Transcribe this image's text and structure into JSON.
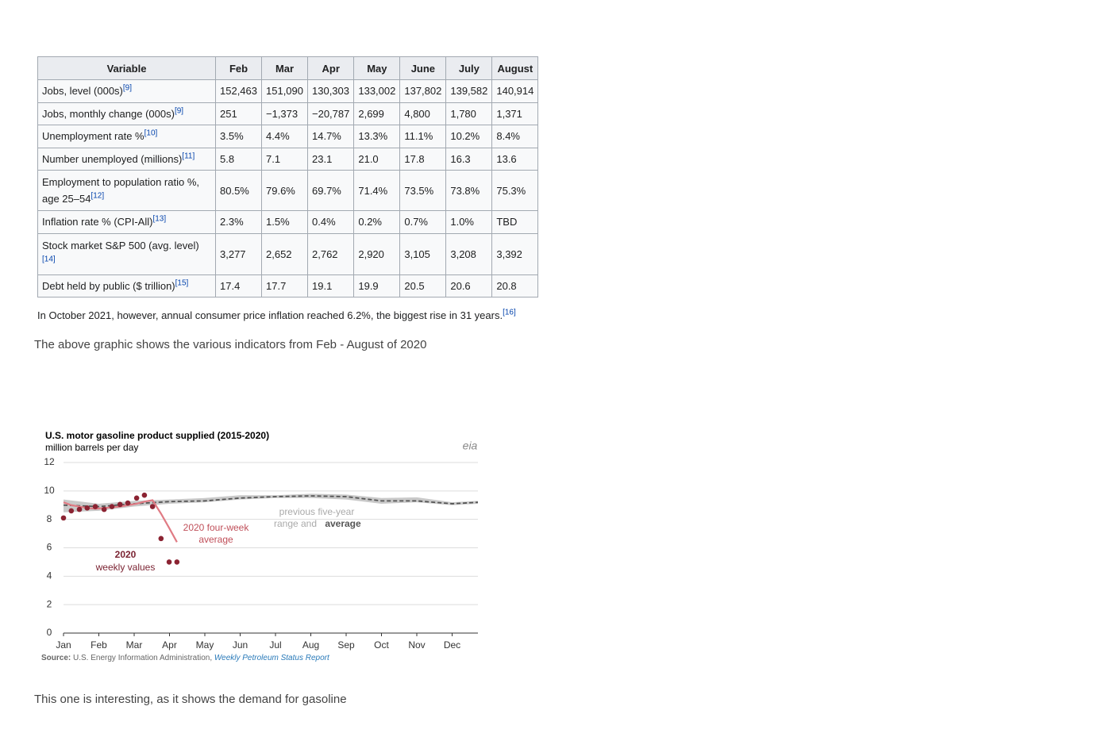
{
  "table": {
    "header": [
      "Variable",
      "Feb",
      "Mar",
      "Apr",
      "May",
      "June",
      "July",
      "August"
    ],
    "rows": [
      {
        "label": "Jobs, level (000s)",
        "ref": "[9]",
        "cells": [
          "152,463",
          "151,090",
          "130,303",
          "133,002",
          "137,802",
          "139,582",
          "140,914"
        ]
      },
      {
        "label": "Jobs, monthly change (000s)",
        "ref": "[9]",
        "cells": [
          "251",
          "−1,373",
          "−20,787",
          "2,699",
          "4,800",
          "1,780",
          "1,371"
        ]
      },
      {
        "label": "Unemployment rate %",
        "ref": "[10]",
        "cells": [
          "3.5%",
          "4.4%",
          "14.7%",
          "13.3%",
          "11.1%",
          "10.2%",
          "8.4%"
        ]
      },
      {
        "label": "Number unemployed (millions)",
        "ref": "[11]",
        "cells": [
          "5.8",
          "7.1",
          "23.1",
          "21.0",
          "17.8",
          "16.3",
          "13.6"
        ]
      },
      {
        "label": "Employment to population ratio %, age 25–54",
        "ref": "[12]",
        "cells": [
          "80.5%",
          "79.6%",
          "69.7%",
          "71.4%",
          "73.5%",
          "73.8%",
          "75.3%"
        ]
      },
      {
        "label": "Inflation rate % (CPI-All)",
        "ref": "[13]",
        "cells": [
          "2.3%",
          "1.5%",
          "0.4%",
          "0.2%",
          "0.7%",
          "1.0%",
          "TBD"
        ]
      },
      {
        "label": "Stock market S&P 500 (avg. level)",
        "ref": "[14]",
        "cells": [
          "3,277",
          "2,652",
          "2,762",
          "2,920",
          "3,105",
          "3,208",
          "3,392"
        ]
      },
      {
        "label": "Debt held by public ($ trillion)",
        "ref": "[15]",
        "cells": [
          "17.4",
          "17.7",
          "19.1",
          "19.9",
          "20.5",
          "20.6",
          "20.8"
        ]
      }
    ]
  },
  "footnote": {
    "text": "In October 2021, however, annual consumer price inflation reached 6.2%, the biggest rise in 31 years.",
    "ref": "[16]"
  },
  "caption_1": "The above graphic shows the various indicators from Feb - August of 2020",
  "caption_2": "This one is interesting, as it shows the demand for gasoline",
  "chart_data": {
    "type": "line",
    "title": "U.S. motor gasoline product supplied (2015-2020)",
    "subtitle": "million barrels per day",
    "logo": "eia",
    "xlim": [
      0,
      11.73
    ],
    "ylim": [
      0,
      12
    ],
    "xticks": [
      {
        "value": 0,
        "label": "Jan"
      },
      {
        "value": 1,
        "label": "Feb"
      },
      {
        "value": 2,
        "label": "Mar"
      },
      {
        "value": 3,
        "label": "Apr"
      },
      {
        "value": 4,
        "label": "May"
      },
      {
        "value": 5,
        "label": "Jun"
      },
      {
        "value": 6,
        "label": "Jul"
      },
      {
        "value": 7,
        "label": "Aug"
      },
      {
        "value": 8,
        "label": "Sep"
      },
      {
        "value": 9,
        "label": "Oct"
      },
      {
        "value": 10,
        "label": "Nov"
      },
      {
        "value": 11,
        "label": "Dec"
      }
    ],
    "yticks": [
      0,
      2,
      4,
      6,
      8,
      10,
      12
    ],
    "grid": true,
    "series": [
      {
        "type": "band",
        "color": "#c9c9c9",
        "x": [
          0,
          1,
          2,
          3,
          4,
          5,
          6,
          7,
          8,
          9,
          10,
          11,
          11.73
        ],
        "values": [
          9.4,
          9.1,
          9.3,
          9.4,
          9.5,
          9.7,
          9.7,
          9.8,
          9.75,
          9.5,
          9.55,
          9.2,
          9.3
        ],
        "low": [
          8.5,
          8.6,
          8.9,
          9.1,
          9.2,
          9.4,
          9.5,
          9.5,
          9.4,
          9.1,
          9.2,
          9.0,
          9.1
        ]
      },
      {
        "type": "line",
        "color": "#555555",
        "dashed": true,
        "x": [
          0,
          1,
          2,
          3,
          4,
          5,
          6,
          7,
          8,
          9,
          10,
          11,
          11.73
        ],
        "values": [
          9.0,
          8.9,
          9.1,
          9.25,
          9.3,
          9.5,
          9.6,
          9.65,
          9.6,
          9.3,
          9.3,
          9.1,
          9.2
        ]
      },
      {
        "type": "line",
        "color": "#e07b84",
        "x": [
          0,
          0.22,
          0.45,
          0.67,
          0.9,
          1.15,
          1.37,
          1.6,
          1.82,
          2.07,
          2.29,
          2.52,
          2.76,
          2.99,
          3.21
        ],
        "values": [
          9.2,
          9.0,
          8.9,
          8.8,
          8.75,
          8.8,
          8.85,
          8.9,
          9.0,
          9.1,
          9.25,
          9.35,
          8.4,
          7.4,
          6.4
        ]
      },
      {
        "type": "scatter",
        "color": "#8b2332",
        "x": [
          0,
          0.22,
          0.45,
          0.67,
          0.9,
          1.15,
          1.37,
          1.6,
          1.82,
          2.07,
          2.29,
          2.52,
          2.76,
          2.99,
          3.21
        ],
        "values": [
          8.1,
          8.6,
          8.7,
          8.8,
          8.9,
          8.7,
          8.9,
          9.05,
          9.15,
          9.5,
          9.7,
          8.9,
          6.65,
          5.0,
          5.0
        ]
      }
    ],
    "annotations": [
      "2020",
      "weekly values",
      "2020 four-week",
      "average",
      "previous five-year",
      "range and",
      "average"
    ],
    "source_label": "Source:",
    "source": "U.S. Energy Information Administration,",
    "source_link": "Weekly Petroleum Status Report"
  }
}
